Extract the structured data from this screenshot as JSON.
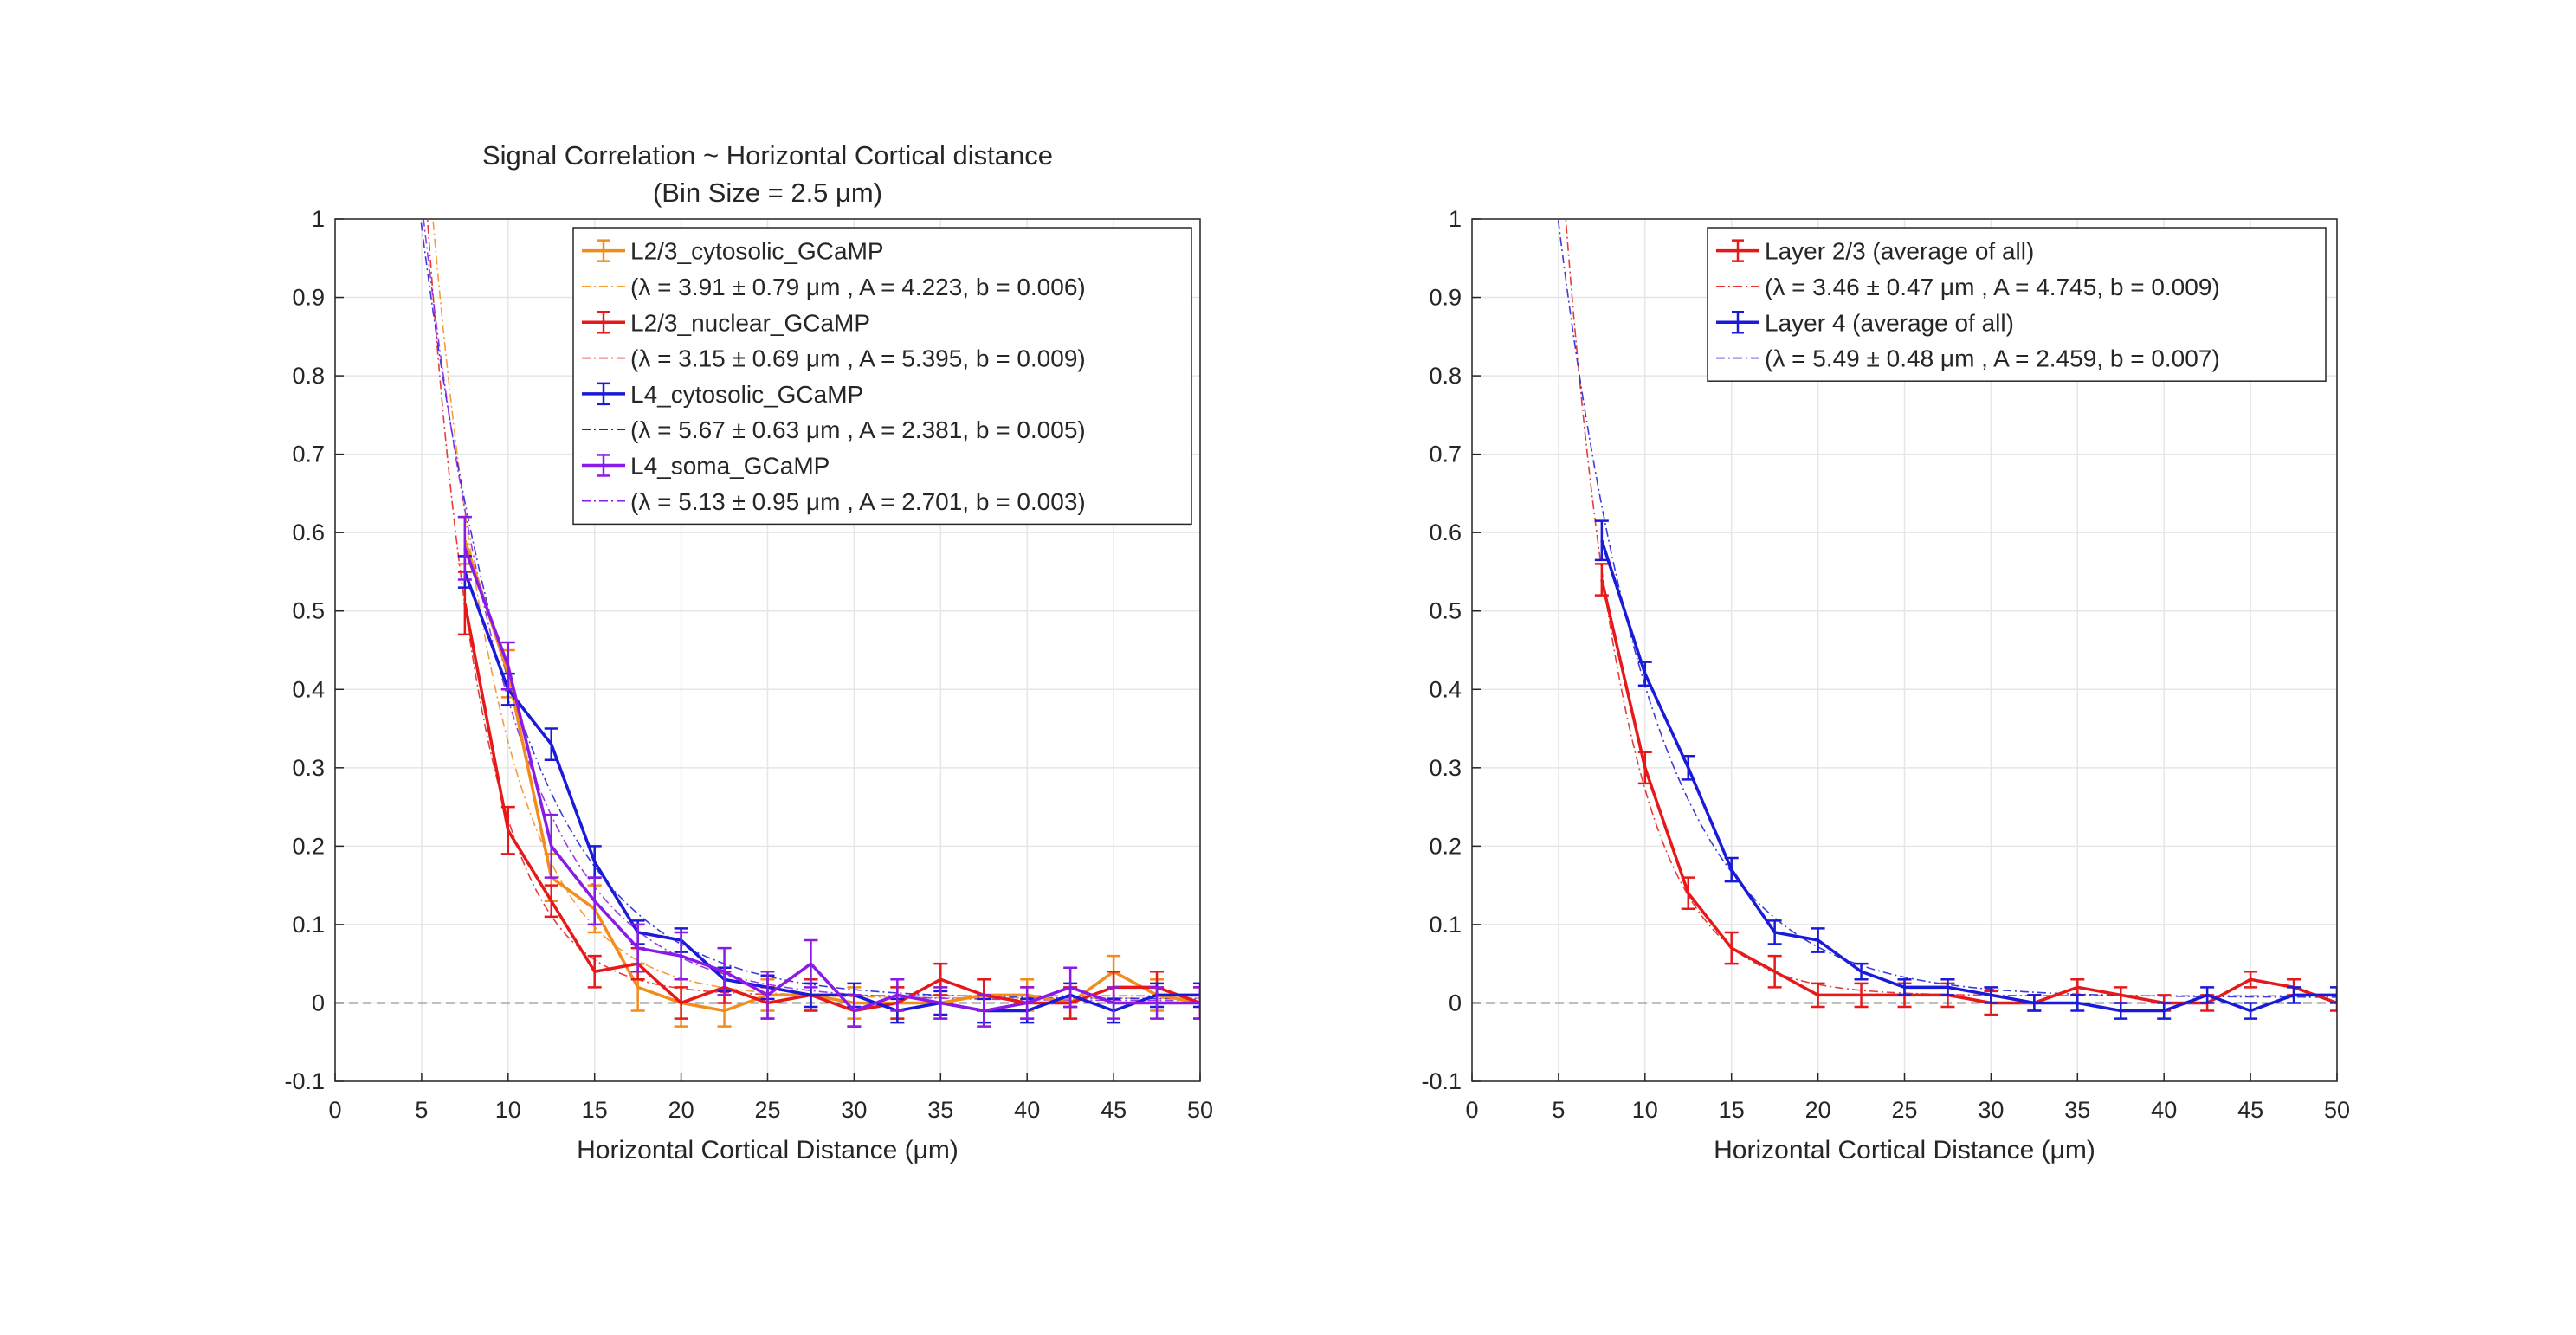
{
  "chart_data": [
    {
      "type": "line",
      "title": "Signal Correlation ~ Horizontal Cortical distance",
      "subtitle": "(Bin Size = 2.5 μm)",
      "xlabel": "Horizontal Cortical Distance (μm)",
      "ylabel": "",
      "xlim": [
        0,
        50
      ],
      "ylim": [
        -0.1,
        1
      ],
      "xticks": [
        "0",
        "5",
        "10",
        "15",
        "20",
        "25",
        "30",
        "35",
        "40",
        "45",
        "50"
      ],
      "yticks": [
        "-0.1",
        "0",
        "0.1",
        "0.2",
        "0.3",
        "0.4",
        "0.5",
        "0.6",
        "0.7",
        "0.8",
        "0.9",
        "1"
      ],
      "grid": true,
      "legend_position": "top-right",
      "zero_line": true,
      "x": [
        7.5,
        10,
        12.5,
        15,
        17.5,
        20,
        22.5,
        25,
        27.5,
        30,
        32.5,
        35,
        37.5,
        40,
        42.5,
        45,
        47.5,
        50
      ],
      "series": [
        {
          "name": "L2/3_cytosolic_GCaMP",
          "fit_label": "(λ =   3.91 ± 0.79 μm , A = 4.223, b = 0.006)",
          "color": "#f28c1a",
          "values": [
            0.59,
            0.42,
            0.16,
            0.12,
            0.02,
            0.0,
            -0.01,
            0.01,
            0.01,
            0.0,
            0.0,
            0.0,
            0.01,
            0.01,
            0.0,
            0.04,
            0.01,
            0.0
          ],
          "errors": [
            0.03,
            0.03,
            0.03,
            0.03,
            0.03,
            0.03,
            0.02,
            0.02,
            0.02,
            0.02,
            0.02,
            0.02,
            0.02,
            0.02,
            0.02,
            0.02,
            0.02,
            0.02
          ],
          "fit": {
            "lambda": 3.91,
            "A": 4.223,
            "b": 0.006
          }
        },
        {
          "name": "L2/3_nuclear_GCaMP",
          "fit_label": "(λ =   3.15 ± 0.69 μm , A = 5.395, b = 0.009)",
          "color": "#e6191a",
          "values": [
            0.51,
            0.22,
            0.13,
            0.04,
            0.05,
            0.0,
            0.02,
            0.0,
            0.01,
            -0.01,
            0.0,
            0.03,
            0.01,
            0.0,
            0.0,
            0.02,
            0.02,
            0.0
          ],
          "errors": [
            0.04,
            0.03,
            0.02,
            0.02,
            0.02,
            0.02,
            0.02,
            0.02,
            0.02,
            0.02,
            0.02,
            0.02,
            0.02,
            0.02,
            0.02,
            0.02,
            0.02,
            0.02
          ],
          "fit": {
            "lambda": 3.15,
            "A": 5.395,
            "b": 0.009
          }
        },
        {
          "name": "L4_cytosolic_GCaMP",
          "fit_label": "(λ =   5.67 ± 0.63 μm , A = 2.381, b = 0.005)",
          "color": "#1a1ad9",
          "values": [
            0.55,
            0.4,
            0.33,
            0.18,
            0.09,
            0.08,
            0.03,
            0.02,
            0.01,
            0.01,
            -0.01,
            0.0,
            -0.01,
            -0.01,
            0.01,
            -0.01,
            0.01,
            0.01
          ],
          "errors": [
            0.02,
            0.02,
            0.02,
            0.02,
            0.015,
            0.015,
            0.015,
            0.015,
            0.015,
            0.015,
            0.015,
            0.015,
            0.015,
            0.015,
            0.015,
            0.015,
            0.015,
            0.015
          ],
          "fit": {
            "lambda": 5.67,
            "A": 2.381,
            "b": 0.005
          }
        },
        {
          "name": "L4_soma_GCaMP",
          "fit_label": "(λ =   5.13 ± 0.95 μm , A = 2.701, b = 0.003)",
          "color": "#8a1ae6",
          "values": [
            0.58,
            0.43,
            0.2,
            0.13,
            0.07,
            0.06,
            0.04,
            0.01,
            0.05,
            -0.01,
            0.01,
            0.0,
            -0.01,
            0.0,
            0.02,
            0.0,
            0.0,
            0.0
          ],
          "errors": [
            0.04,
            0.03,
            0.04,
            0.03,
            0.03,
            0.03,
            0.03,
            0.03,
            0.03,
            0.02,
            0.02,
            0.02,
            0.02,
            0.02,
            0.025,
            0.02,
            0.02,
            0.02
          ],
          "fit": {
            "lambda": 5.13,
            "A": 2.701,
            "b": 0.003
          }
        }
      ]
    },
    {
      "type": "line",
      "title": "",
      "subtitle": "",
      "xlabel": "Horizontal Cortical Distance (μm)",
      "ylabel": "",
      "xlim": [
        0,
        50
      ],
      "ylim": [
        -0.1,
        1
      ],
      "xticks": [
        "0",
        "5",
        "10",
        "15",
        "20",
        "25",
        "30",
        "35",
        "40",
        "45",
        "50"
      ],
      "yticks": [
        "-0.1",
        "0",
        "0.1",
        "0.2",
        "0.3",
        "0.4",
        "0.5",
        "0.6",
        "0.7",
        "0.8",
        "0.9",
        "1"
      ],
      "grid": true,
      "legend_position": "top-right",
      "zero_line": true,
      "x": [
        7.5,
        10,
        12.5,
        15,
        17.5,
        20,
        22.5,
        25,
        27.5,
        30,
        32.5,
        35,
        37.5,
        40,
        42.5,
        45,
        47.5,
        50
      ],
      "series": [
        {
          "name": "Layer 2/3 (average of all)",
          "fit_label": "(λ =   3.46 ± 0.47 μm , A = 4.745, b = 0.009)",
          "color": "#e6191a",
          "values": [
            0.54,
            0.3,
            0.14,
            0.07,
            0.04,
            0.01,
            0.01,
            0.01,
            0.01,
            0.0,
            0.0,
            0.02,
            0.01,
            0.0,
            0.0,
            0.03,
            0.02,
            0.0
          ],
          "errors": [
            0.02,
            0.02,
            0.02,
            0.02,
            0.02,
            0.015,
            0.015,
            0.015,
            0.015,
            0.015,
            0.01,
            0.01,
            0.01,
            0.01,
            0.01,
            0.01,
            0.01,
            0.01
          ],
          "fit": {
            "lambda": 3.46,
            "A": 4.745,
            "b": 0.009
          }
        },
        {
          "name": "Layer 4 (average of all)",
          "fit_label": "(λ =   5.49 ± 0.48 μm , A = 2.459, b = 0.007)",
          "color": "#1a1ad9",
          "values": [
            0.59,
            0.42,
            0.3,
            0.17,
            0.09,
            0.08,
            0.04,
            0.02,
            0.02,
            0.01,
            0.0,
            0.0,
            -0.01,
            -0.01,
            0.01,
            -0.01,
            0.01,
            0.01
          ],
          "errors": [
            0.025,
            0.015,
            0.015,
            0.015,
            0.015,
            0.015,
            0.01,
            0.01,
            0.01,
            0.01,
            0.01,
            0.01,
            0.01,
            0.01,
            0.01,
            0.01,
            0.01,
            0.01
          ],
          "fit": {
            "lambda": 5.49,
            "A": 2.459,
            "b": 0.007
          }
        }
      ]
    }
  ]
}
